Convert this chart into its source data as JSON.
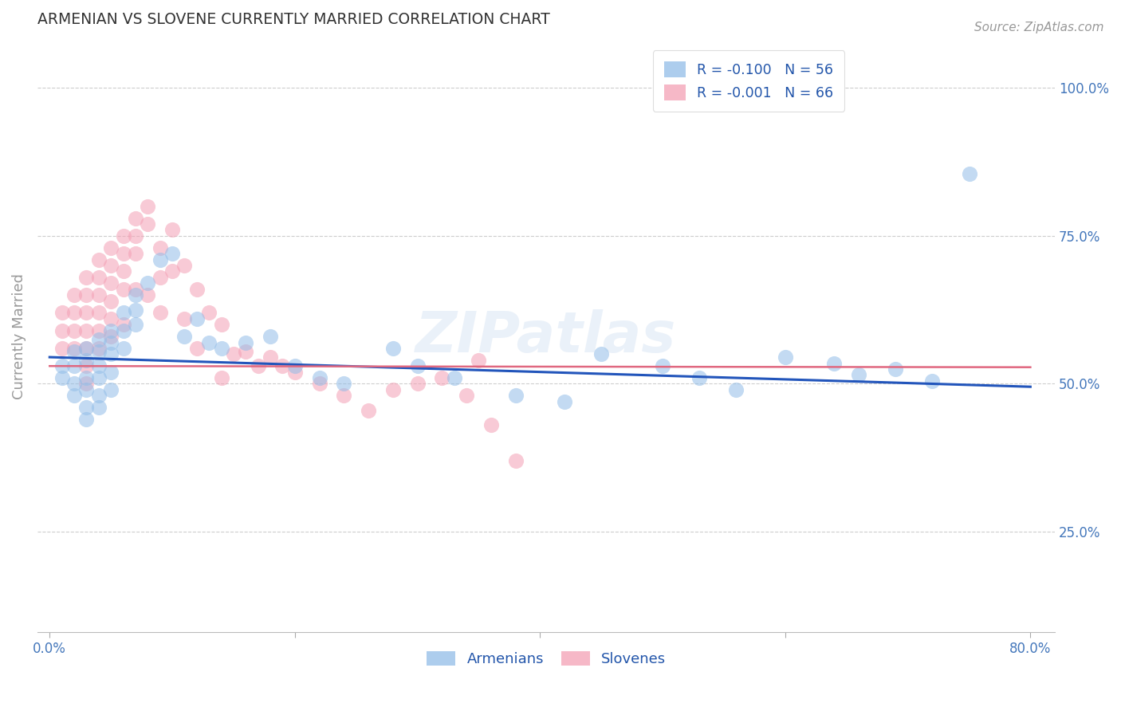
{
  "title": "ARMENIAN VS SLOVENE CURRENTLY MARRIED CORRELATION CHART",
  "source": "Source: ZipAtlas.com",
  "ylabel": "Currently Married",
  "xlim": [
    -0.01,
    0.82
  ],
  "ylim": [
    0.08,
    1.08
  ],
  "xticks": [
    0.0,
    0.2,
    0.4,
    0.6,
    0.8
  ],
  "xticklabels": [
    "0.0%",
    "",
    "",
    "",
    "80.0%"
  ],
  "yticks": [
    0.25,
    0.5,
    0.75,
    1.0
  ],
  "yticklabels": [
    "25.0%",
    "50.0%",
    "75.0%",
    "100.0%"
  ],
  "legend_entries": [
    {
      "label": "R = -0.100   N = 56",
      "color": "#92bde8"
    },
    {
      "label": "R = -0.001   N = 66",
      "color": "#f4a0b5"
    }
  ],
  "legend_bottom": [
    {
      "label": "Armenians",
      "color": "#92bde8"
    },
    {
      "label": "Slovenes",
      "color": "#f4a0b5"
    }
  ],
  "armenian_color": "#92bde8",
  "slovene_color": "#f4a0b5",
  "armenian_line_color": "#2255bb",
  "slovene_line_color": "#e06880",
  "background_color": "#ffffff",
  "grid_color": "#c8c8c8",
  "title_color": "#333333",
  "tick_color": "#4477bb",
  "watermark": "ZIPatlas",
  "arm_line_x": [
    0.0,
    0.8
  ],
  "arm_line_y": [
    0.545,
    0.495
  ],
  "slo_line_x": [
    0.0,
    0.8
  ],
  "slo_line_y": [
    0.53,
    0.528
  ],
  "armenians_x": [
    0.01,
    0.01,
    0.02,
    0.02,
    0.02,
    0.02,
    0.03,
    0.03,
    0.03,
    0.03,
    0.03,
    0.03,
    0.04,
    0.04,
    0.04,
    0.04,
    0.04,
    0.04,
    0.05,
    0.05,
    0.05,
    0.05,
    0.05,
    0.06,
    0.06,
    0.06,
    0.07,
    0.07,
    0.07,
    0.08,
    0.09,
    0.1,
    0.11,
    0.12,
    0.13,
    0.14,
    0.16,
    0.18,
    0.2,
    0.22,
    0.24,
    0.28,
    0.3,
    0.33,
    0.38,
    0.42,
    0.45,
    0.5,
    0.53,
    0.56,
    0.6,
    0.64,
    0.66,
    0.69,
    0.72,
    0.75
  ],
  "armenians_y": [
    0.53,
    0.51,
    0.555,
    0.53,
    0.5,
    0.48,
    0.56,
    0.54,
    0.51,
    0.49,
    0.46,
    0.44,
    0.575,
    0.555,
    0.53,
    0.51,
    0.48,
    0.46,
    0.59,
    0.57,
    0.55,
    0.52,
    0.49,
    0.62,
    0.59,
    0.56,
    0.65,
    0.625,
    0.6,
    0.67,
    0.71,
    0.72,
    0.58,
    0.61,
    0.57,
    0.56,
    0.57,
    0.58,
    0.53,
    0.51,
    0.5,
    0.56,
    0.53,
    0.51,
    0.48,
    0.47,
    0.55,
    0.53,
    0.51,
    0.49,
    0.545,
    0.535,
    0.515,
    0.525,
    0.505,
    0.855
  ],
  "slovenes_x": [
    0.01,
    0.01,
    0.01,
    0.02,
    0.02,
    0.02,
    0.02,
    0.03,
    0.03,
    0.03,
    0.03,
    0.03,
    0.03,
    0.03,
    0.04,
    0.04,
    0.04,
    0.04,
    0.04,
    0.04,
    0.05,
    0.05,
    0.05,
    0.05,
    0.05,
    0.05,
    0.06,
    0.06,
    0.06,
    0.06,
    0.06,
    0.07,
    0.07,
    0.07,
    0.07,
    0.08,
    0.08,
    0.08,
    0.09,
    0.09,
    0.09,
    0.1,
    0.1,
    0.11,
    0.11,
    0.12,
    0.12,
    0.13,
    0.14,
    0.14,
    0.15,
    0.16,
    0.17,
    0.18,
    0.19,
    0.2,
    0.22,
    0.24,
    0.26,
    0.28,
    0.3,
    0.32,
    0.34,
    0.35,
    0.36,
    0.38
  ],
  "slovenes_y": [
    0.62,
    0.59,
    0.56,
    0.65,
    0.62,
    0.59,
    0.56,
    0.68,
    0.65,
    0.62,
    0.59,
    0.56,
    0.53,
    0.5,
    0.71,
    0.68,
    0.65,
    0.62,
    0.59,
    0.56,
    0.73,
    0.7,
    0.67,
    0.64,
    0.61,
    0.58,
    0.75,
    0.72,
    0.69,
    0.66,
    0.6,
    0.78,
    0.75,
    0.72,
    0.66,
    0.8,
    0.77,
    0.65,
    0.73,
    0.68,
    0.62,
    0.76,
    0.69,
    0.7,
    0.61,
    0.66,
    0.56,
    0.62,
    0.6,
    0.51,
    0.55,
    0.555,
    0.53,
    0.545,
    0.53,
    0.52,
    0.5,
    0.48,
    0.455,
    0.49,
    0.5,
    0.51,
    0.48,
    0.54,
    0.43,
    0.37
  ]
}
